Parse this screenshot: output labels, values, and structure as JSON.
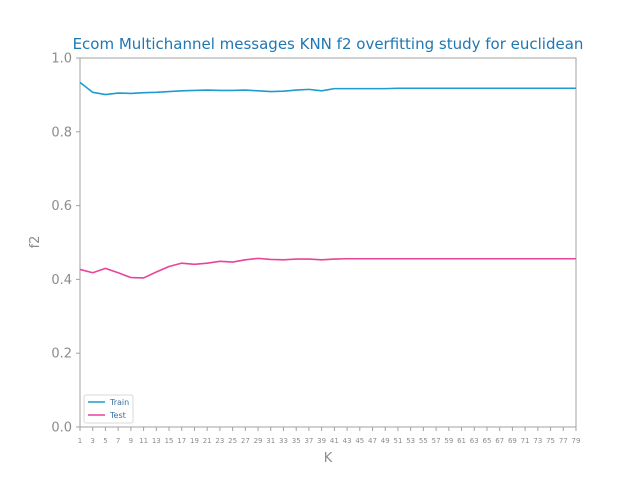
{
  "chart_data": {
    "type": "line",
    "title": "Ecom Multichannel messages KNN f2 overfitting study for euclidean",
    "xlabel": "K",
    "ylabel": "f2",
    "ylim": [
      0.0,
      1.0
    ],
    "yticks": [
      "0.0",
      "0.2",
      "0.4",
      "0.6",
      "0.8",
      "1.0"
    ],
    "ytick_values": [
      0.0,
      0.2,
      0.4,
      0.6,
      0.8,
      1.0
    ],
    "x": [
      1,
      3,
      5,
      7,
      9,
      11,
      13,
      15,
      17,
      19,
      21,
      23,
      25,
      27,
      29,
      31,
      33,
      35,
      37,
      39,
      41,
      43,
      45,
      47,
      49,
      51,
      53,
      55,
      57,
      59,
      61,
      63,
      65,
      67,
      69,
      71,
      73,
      75,
      77,
      79
    ],
    "xtick_labels": [
      "1",
      "3",
      "5",
      "7",
      "9",
      "11",
      "13",
      "15",
      "17",
      "19",
      "21",
      "23",
      "25",
      "27",
      "29",
      "31",
      "33",
      "35",
      "37",
      "39",
      "41",
      "43",
      "45",
      "47",
      "49",
      "51",
      "53",
      "55",
      "57",
      "59",
      "61",
      "63",
      "65",
      "67",
      "69",
      "71",
      "73",
      "75",
      "77",
      "79"
    ],
    "grid": false,
    "legend_position": "lower-left",
    "series": [
      {
        "name": "Train",
        "color": "#1f9bcf",
        "values": [
          0.934,
          0.907,
          0.901,
          0.905,
          0.904,
          0.906,
          0.907,
          0.909,
          0.911,
          0.912,
          0.913,
          0.912,
          0.912,
          0.913,
          0.911,
          0.909,
          0.91,
          0.913,
          0.915,
          0.911,
          0.917,
          0.917,
          0.917,
          0.917,
          0.917,
          0.918,
          0.918,
          0.918,
          0.918,
          0.918,
          0.918,
          0.918,
          0.918,
          0.918,
          0.918,
          0.918,
          0.918,
          0.918,
          0.918,
          0.918
        ]
      },
      {
        "name": "Test",
        "color": "#e8449a",
        "values": [
          0.427,
          0.418,
          0.43,
          0.418,
          0.405,
          0.404,
          0.42,
          0.435,
          0.444,
          0.441,
          0.444,
          0.449,
          0.447,
          0.453,
          0.457,
          0.454,
          0.453,
          0.455,
          0.455,
          0.453,
          0.455,
          0.456,
          0.456,
          0.456,
          0.456,
          0.456,
          0.456,
          0.456,
          0.456,
          0.456,
          0.456,
          0.456,
          0.456,
          0.456,
          0.456,
          0.456,
          0.456,
          0.456,
          0.456,
          0.456
        ]
      }
    ]
  }
}
